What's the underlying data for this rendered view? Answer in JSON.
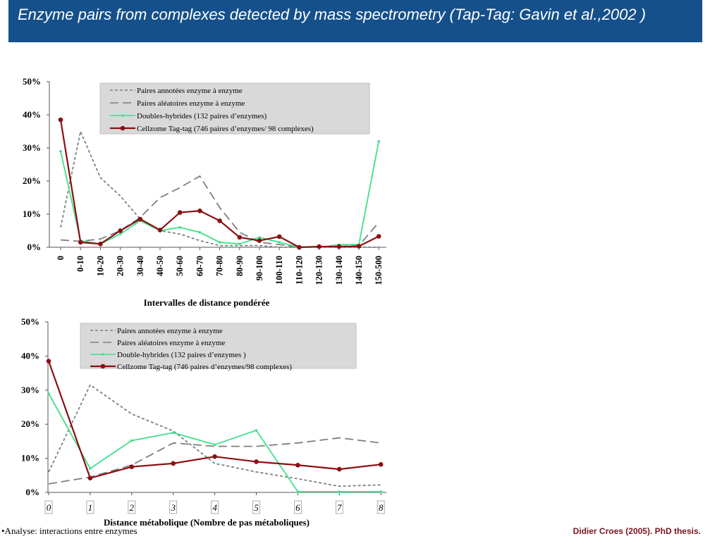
{
  "slide": {
    "title": "Enzyme pairs from complexes detected by mass spectrometry (Tap-Tag: Gavin et al.,2002 )",
    "footer_left": "•Analyse: interactions entre enzymes",
    "footer_right": "Didier Croes (2005). PhD thesis."
  },
  "chart_data": [
    {
      "type": "line",
      "xlabel": "Intervalles de distance pondérée",
      "ylabel": "",
      "ylim": [
        0,
        50
      ],
      "yticks": [
        "0%",
        "10%",
        "20%",
        "30%",
        "40%",
        "50%"
      ],
      "categories": [
        "0",
        "0-10",
        "10-20",
        "20-30",
        "30-40",
        "40-50",
        "50-60",
        "60-70",
        "70-80",
        "80-90",
        "90-100",
        "100-110",
        "110-120",
        "120-130",
        "130-140",
        "140-150",
        "150-500"
      ],
      "legend_position": "top",
      "series": [
        {
          "name": "Paires annotées enzyme à enzyme",
          "color": "#7f7f7f",
          "dash": "short",
          "marker": "none",
          "values": [
            6,
            35,
            21,
            15.5,
            8.5,
            5,
            4,
            2,
            0.5,
            0.5,
            0.5,
            0,
            0,
            0,
            0,
            0,
            0
          ]
        },
        {
          "name": "Paires aléatoires enzyme à enzyme",
          "color": "#7f7f7f",
          "dash": "long",
          "marker": "none",
          "values": [
            2.2,
            1.8,
            2.5,
            5,
            9,
            15,
            18,
            21.5,
            12,
            4.5,
            1.5,
            0.8,
            0,
            0,
            0.2,
            0.5,
            7.5
          ]
        },
        {
          "name": "Doubles-hybrides (132 paires d’enzymes)",
          "color": "#3fe08a",
          "dash": "solid",
          "marker": "small",
          "values": [
            29,
            2,
            1,
            4,
            8,
            5,
            6,
            4.5,
            1.5,
            1,
            3,
            1.5,
            0,
            0,
            0.8,
            0.8,
            32
          ]
        },
        {
          "name": "Cellzome Tag-tag (746 paires d’enzymes/ 98 complexes)",
          "color": "#8b0f12",
          "dash": "solid",
          "marker": "dot",
          "values": [
            38.5,
            1.5,
            1,
            5,
            8.5,
            5.2,
            10.5,
            11,
            8,
            3,
            2,
            3.2,
            0,
            0.2,
            0.2,
            0.3,
            3.3
          ]
        }
      ]
    },
    {
      "type": "line",
      "xlabel": "Distance métabolique (Nombre de pas métaboliques)",
      "ylabel": "",
      "ylim": [
        0,
        50
      ],
      "yticks": [
        "0%",
        "10%",
        "20%",
        "30%",
        "40%",
        "50%"
      ],
      "categories": [
        "0",
        "1",
        "2",
        "3",
        "4",
        "5",
        "6",
        "7",
        "8"
      ],
      "legend_position": "top",
      "series": [
        {
          "name": "Paires annotées enzyme à enzyme",
          "color": "#7f7f7f",
          "dash": "short",
          "marker": "none",
          "values": [
            6,
            31.5,
            23,
            18,
            8.5,
            6,
            4,
            1.8,
            2.2
          ]
        },
        {
          "name": "Paires aléatoires enzyme à enzyme",
          "color": "#7f7f7f",
          "dash": "long",
          "marker": "none",
          "values": [
            2.5,
            4.5,
            8,
            14.5,
            13.5,
            13.5,
            14.5,
            16,
            14.5
          ]
        },
        {
          "name": "Double-hybrides (132 paires d’enzymes )",
          "color": "#3fe08a",
          "dash": "solid",
          "marker": "small",
          "values": [
            29,
            7,
            15.2,
            17.5,
            14,
            18.2,
            0.2,
            0.2,
            0.2
          ]
        },
        {
          "name": "Cellzome Tag-tag (746 paires d’enzymes/98 complexes)",
          "color": "#8b0f12",
          "dash": "solid",
          "marker": "dot",
          "values": [
            38.5,
            4.2,
            7.5,
            8.5,
            10.5,
            9,
            8,
            6.8,
            8.2
          ]
        }
      ]
    }
  ]
}
